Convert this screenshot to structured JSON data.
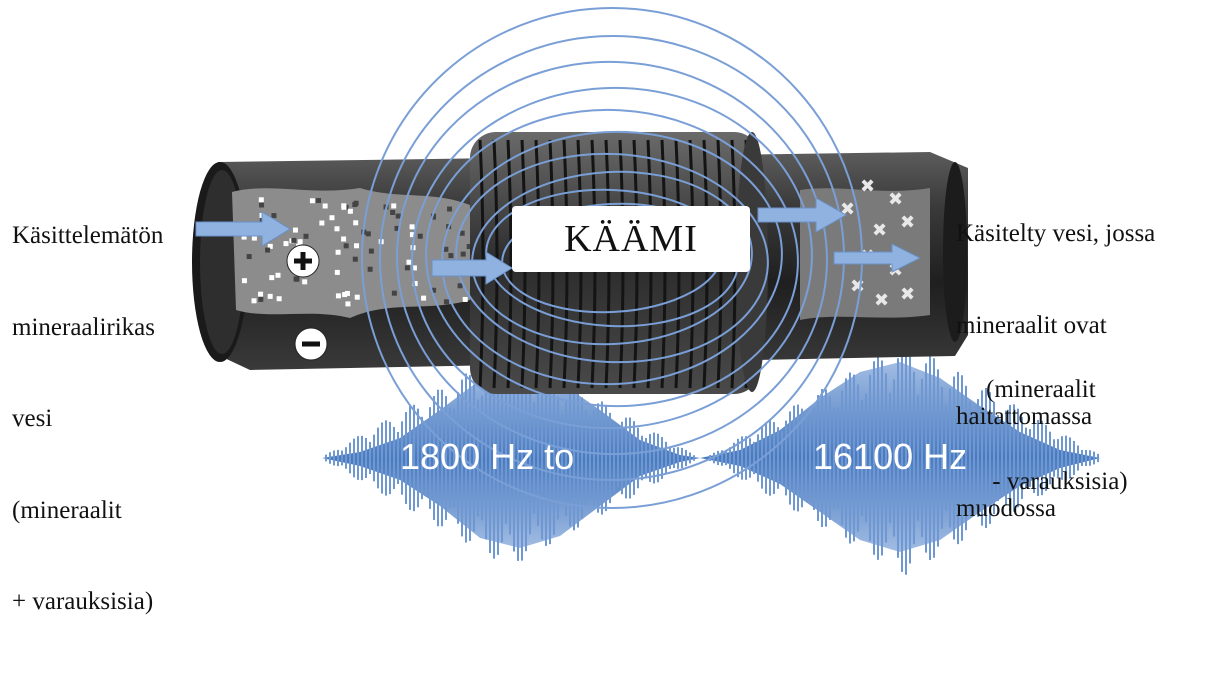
{
  "left_label_lines": [
    "Käsittelemätön",
    "mineraalirikas",
    "vesi",
    "(mineraalit",
    "+ varauksisia)"
  ],
  "right_label_lines": [
    "Käsitelty vesi, jossa",
    "mineraalit ovat",
    "haitattomassa",
    "muodossa"
  ],
  "right_label_tail_lines": [
    "(mineraalit",
    " - varauksisia)"
  ],
  "coil_label": "KÄÄMI",
  "freq_from": "1800 Hz to",
  "freq_to": "16100 Hz",
  "colors": {
    "pipe_dark": "#2a2a2a",
    "pipe_mid": "#5a5a5a",
    "water_gray": "#8c8c8c",
    "field_line": "#7a9fd6",
    "arrow": "#8fb2e0",
    "wave": "#4d7fc2",
    "wave_light": "#9db9e2"
  },
  "icons": [
    "plus-charge-icon",
    "minus-charge-icon",
    "flow-arrow-icon",
    "field-line-icon",
    "coil-icon",
    "sound-wave-icon"
  ]
}
